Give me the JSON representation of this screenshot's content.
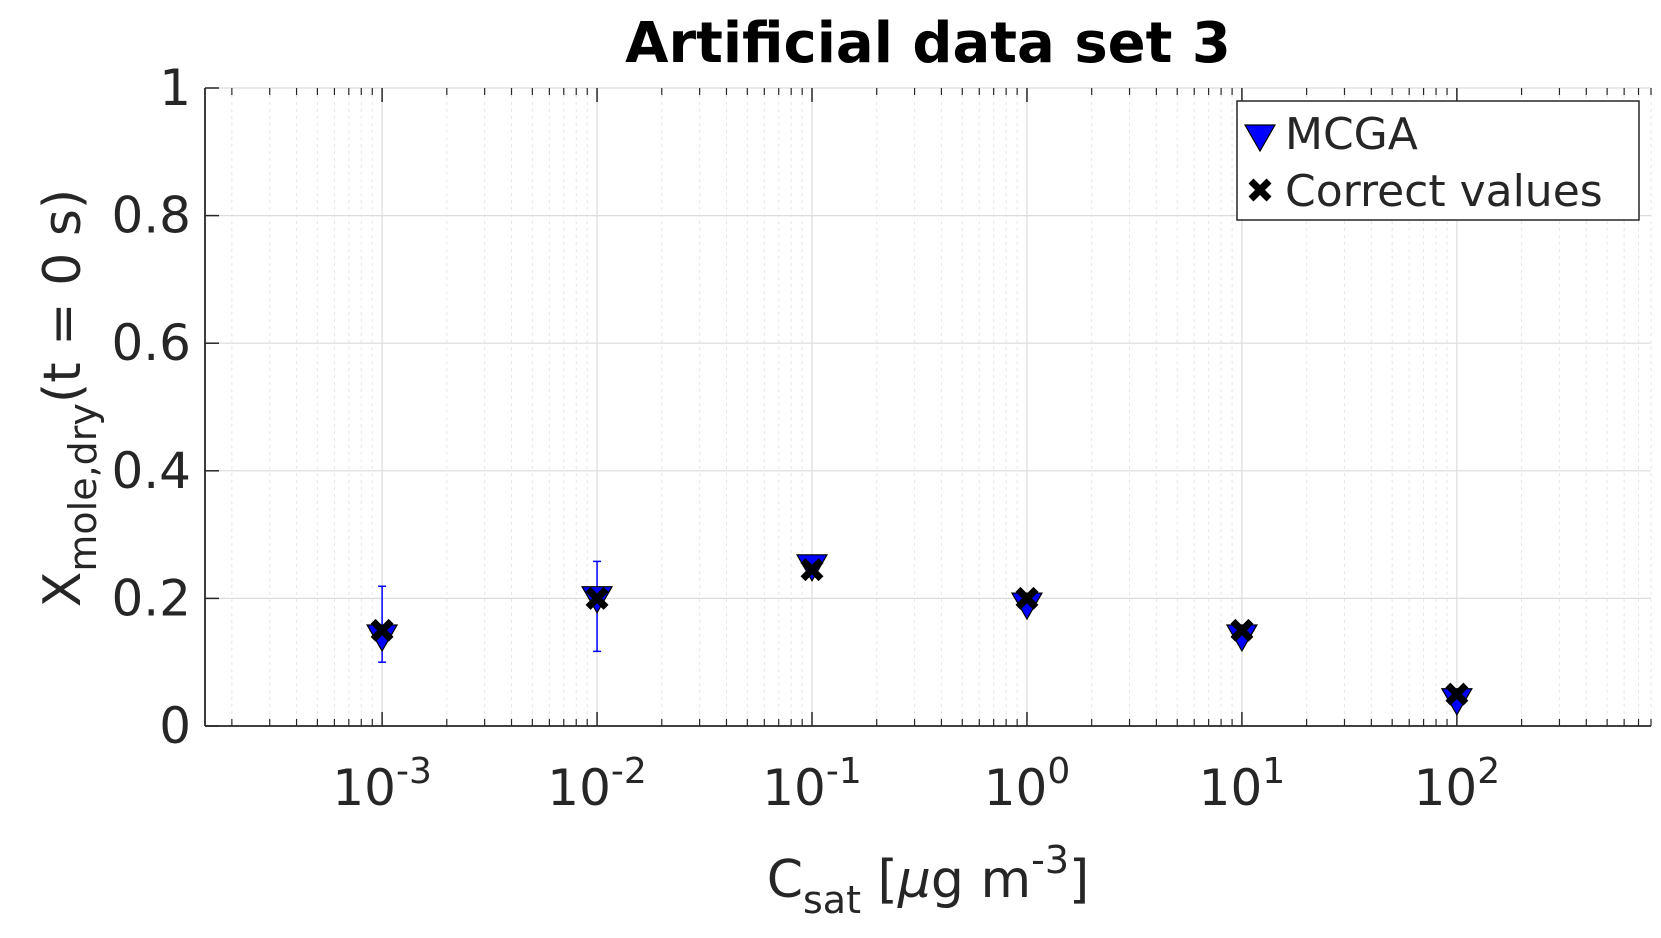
{
  "chart_data": {
    "type": "scatter",
    "title": "Artificial data set 3",
    "xlabel": {
      "main": "C",
      "sub": "sat",
      "rest_open": " [",
      "mu": "μ",
      "rest_mid": "g m",
      "sup": "-3",
      "rest_close": "]"
    },
    "ylabel": {
      "main": "X",
      "sub": "mole,dry",
      "rest": "(t = 0 s)"
    },
    "x_scale": "log",
    "xlim": [
      0.00015,
      800
    ],
    "ylim": [
      0,
      1
    ],
    "grid": true,
    "minor_grid": true,
    "legend_position": "top-right",
    "x_ticks": [
      {
        "base": "10",
        "exp": "-3",
        "value": 0.001
      },
      {
        "base": "10",
        "exp": "-2",
        "value": 0.01
      },
      {
        "base": "10",
        "exp": "-1",
        "value": 0.1
      },
      {
        "base": "10",
        "exp": "0",
        "value": 1
      },
      {
        "base": "10",
        "exp": "1",
        "value": 10
      },
      {
        "base": "10",
        "exp": "2",
        "value": 100
      }
    ],
    "y_ticks": [
      {
        "label": "0",
        "value": 0
      },
      {
        "label": "0.2",
        "value": 0.2
      },
      {
        "label": "0.4",
        "value": 0.4
      },
      {
        "label": "0.6",
        "value": 0.6
      },
      {
        "label": "0.8",
        "value": 0.8
      },
      {
        "label": "1",
        "value": 1
      }
    ],
    "series": [
      {
        "name": "MCGA",
        "marker": "triangle-down",
        "color": "#0000ff",
        "x": [
          0.001,
          0.01,
          0.1,
          1,
          10,
          100
        ],
        "y": [
          0.14,
          0.2,
          0.25,
          0.19,
          0.14,
          0.04
        ],
        "err_low": [
          0.1,
          0.117,
          0.24,
          0.18,
          0.13,
          0.03
        ],
        "err_high": [
          0.219,
          0.258,
          0.267,
          0.2,
          0.15,
          0.05
        ]
      },
      {
        "name": "Correct values",
        "marker": "x",
        "color": "#000000",
        "x": [
          0.001,
          0.01,
          0.1,
          1,
          10,
          100
        ],
        "y": [
          0.15,
          0.2,
          0.245,
          0.2,
          0.15,
          0.05
        ]
      }
    ]
  }
}
